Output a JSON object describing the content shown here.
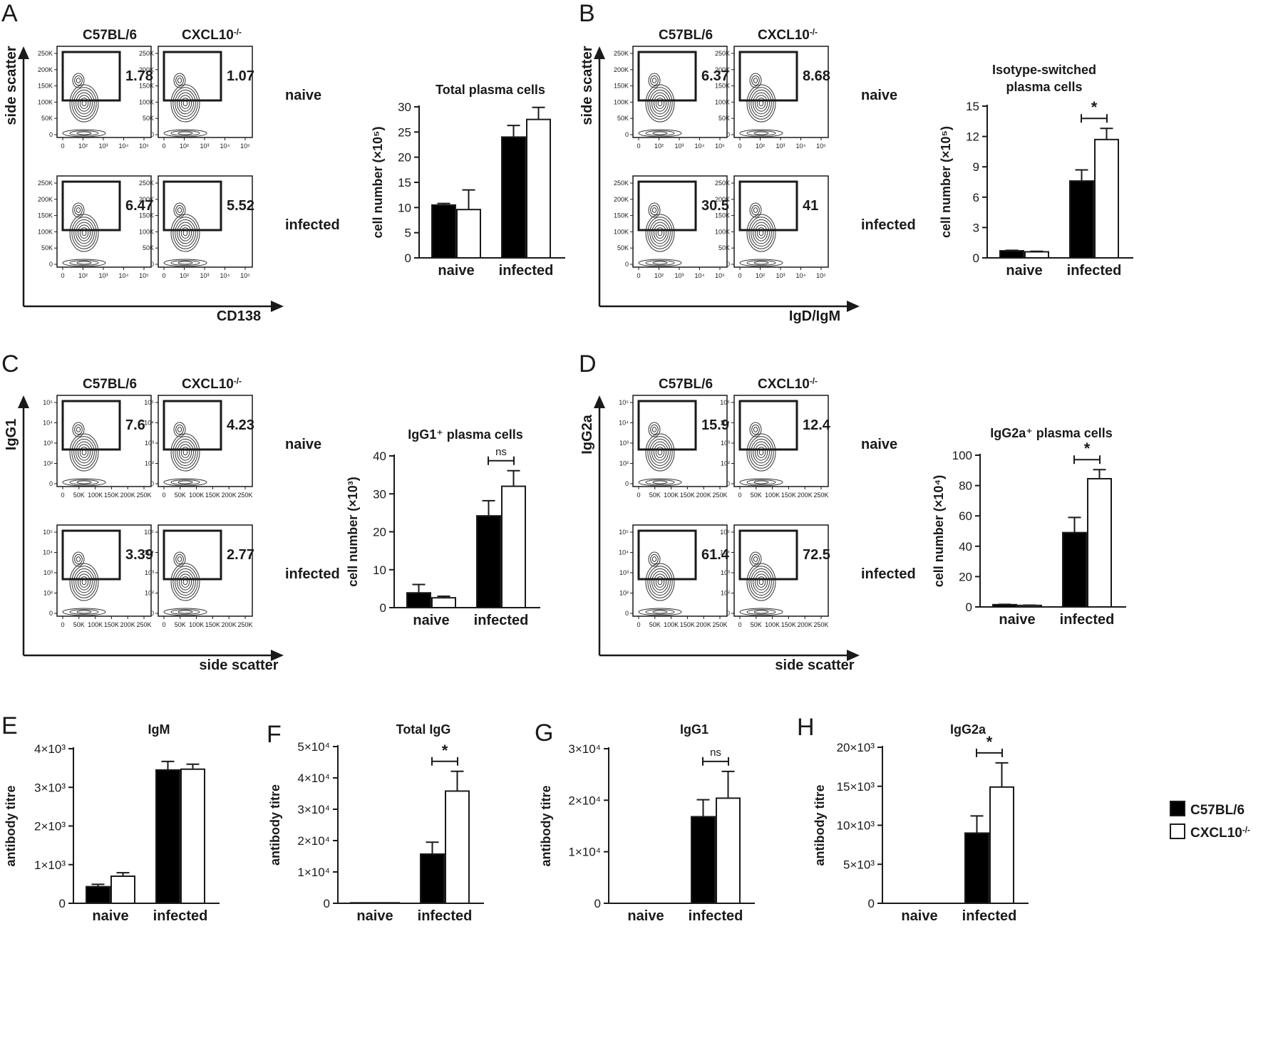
{
  "colors": {
    "wt": "#000000",
    "ko": "#ffffff",
    "ink": "#1a1a1a"
  },
  "legend": {
    "wt": "C57BL/6",
    "ko": "CXCL10-/-"
  },
  "flow_panels": [
    {
      "letter": "A",
      "col_labels": [
        "C57BL/6",
        "CXCL10-/-"
      ],
      "row_labels": [
        "naive",
        "infected"
      ],
      "y_axis_label": "side scatter",
      "x_axis_label": "CD138",
      "y_ticks": [
        "0",
        "50K",
        "100K",
        "150K",
        "200K",
        "250K"
      ],
      "x_ticks": [
        "0",
        "10²",
        "10³",
        "10⁴",
        "10⁵"
      ],
      "gate_type": "plasma-oval",
      "gate_values": [
        "1.78",
        "1.07",
        "6.47",
        "5.52"
      ]
    },
    {
      "letter": "B",
      "col_labels": [
        "C57BL/6",
        "CXCL10-/-"
      ],
      "row_labels": [
        "naive",
        "infected"
      ],
      "y_axis_label": "side scatter",
      "x_axis_label": "IgD/IgM",
      "y_ticks": [
        "0",
        "50K",
        "100K",
        "150K",
        "200K",
        "250K"
      ],
      "x_ticks": [
        "0",
        "10²",
        "10³",
        "10⁴",
        "10⁵"
      ],
      "gate_type": "left-rect",
      "gate_values": [
        "6.37",
        "8.68",
        "30.5",
        "41"
      ]
    },
    {
      "letter": "C",
      "col_labels": [
        "C57BL/6",
        "CXCL10-/-"
      ],
      "row_labels": [
        "naive",
        "infected"
      ],
      "y_axis_label": "IgG1",
      "x_axis_label": "side scatter",
      "y_ticks": [
        "0",
        "10²",
        "10³",
        "10⁴",
        "10⁵"
      ],
      "x_ticks": [
        "0",
        "50K",
        "100K",
        "150K",
        "200K",
        "250K"
      ],
      "gate_type": "top-rect",
      "gate_values": [
        "7.6",
        "4.23",
        "3.39",
        "2.77"
      ]
    },
    {
      "letter": "D",
      "col_labels": [
        "C57BL/6",
        "CXCL10-/-"
      ],
      "row_labels": [
        "naive",
        "infected"
      ],
      "y_axis_label": "IgG2a",
      "x_axis_label": "side scatter",
      "y_ticks": [
        "0",
        "10²",
        "10³",
        "10⁴",
        "10⁵"
      ],
      "x_ticks": [
        "0",
        "50K",
        "100K",
        "150K",
        "200K",
        "250K"
      ],
      "gate_type": "top-rect",
      "gate_values": [
        "15.9",
        "12.4",
        "61.4",
        "72.5"
      ]
    }
  ],
  "chart_data": [
    {
      "id": "A-bar",
      "type": "bar",
      "title": "Total plasma cells",
      "ylabel": "cell number (×10⁵)",
      "categories": [
        "naive",
        "infected"
      ],
      "ylim": [
        0,
        30
      ],
      "yticks": [
        0,
        5,
        10,
        15,
        20,
        25,
        30
      ],
      "tick_labels": [
        "0",
        "5",
        "10",
        "15",
        "20",
        "25",
        "30"
      ],
      "series": [
        {
          "name": "C57BL/6",
          "values": [
            10.5,
            24.0
          ],
          "errors": [
            0.3,
            2.3
          ]
        },
        {
          "name": "CXCL10-/-",
          "values": [
            9.6,
            27.5
          ],
          "errors": [
            3.9,
            2.4
          ]
        }
      ],
      "significance": []
    },
    {
      "id": "B-bar",
      "type": "bar",
      "title": "Isotype-switched plasma cells",
      "ylabel": "cell number (×10⁵)",
      "categories": [
        "naive",
        "infected"
      ],
      "ylim": [
        0,
        15
      ],
      "yticks": [
        0,
        3,
        6,
        9,
        12,
        15
      ],
      "tick_labels": [
        "0",
        "3",
        "6",
        "9",
        "12",
        "15"
      ],
      "series": [
        {
          "name": "C57BL/6",
          "values": [
            0.7,
            7.6
          ],
          "errors": [
            0.05,
            1.1
          ]
        },
        {
          "name": "CXCL10-/-",
          "values": [
            0.6,
            11.7
          ],
          "errors": [
            0.05,
            1.1
          ]
        }
      ],
      "significance": [
        {
          "category": 1,
          "label": "*"
        }
      ]
    },
    {
      "id": "C-bar",
      "type": "bar",
      "title": "IgG1⁺ plasma cells",
      "ylabel": "cell number (×10³)",
      "categories": [
        "naive",
        "infected"
      ],
      "ylim": [
        0,
        40
      ],
      "yticks": [
        0,
        10,
        20,
        30,
        40
      ],
      "tick_labels": [
        "0",
        "10",
        "20",
        "30",
        "40"
      ],
      "series": [
        {
          "name": "C57BL/6",
          "values": [
            3.9,
            24.2
          ],
          "errors": [
            2.2,
            4.0
          ]
        },
        {
          "name": "CXCL10-/-",
          "values": [
            2.6,
            32.0
          ],
          "errors": [
            0.4,
            4.1
          ]
        }
      ],
      "significance": [
        {
          "category": 1,
          "label": "ns"
        }
      ]
    },
    {
      "id": "D-bar",
      "type": "bar",
      "title": "IgG2a⁺ plasma cells",
      "ylabel": "cell number (×10⁴)",
      "categories": [
        "naive",
        "infected"
      ],
      "ylim": [
        0,
        100
      ],
      "yticks": [
        0,
        20,
        40,
        60,
        80,
        100
      ],
      "tick_labels": [
        "0",
        "20",
        "40",
        "60",
        "80",
        "100"
      ],
      "series": [
        {
          "name": "C57BL/6",
          "values": [
            1.5,
            49.0
          ],
          "errors": [
            0.2,
            10.0
          ]
        },
        {
          "name": "CXCL10-/-",
          "values": [
            1.0,
            84.5
          ],
          "errors": [
            0.2,
            6.0
          ]
        }
      ],
      "significance": [
        {
          "category": 1,
          "label": "*"
        }
      ]
    },
    {
      "id": "E",
      "type": "bar",
      "letter": "E",
      "title": "IgM",
      "ylabel": "antibody titre",
      "categories": [
        "naive",
        "infected"
      ],
      "ylim": [
        0,
        4000
      ],
      "yticks": [
        0,
        1000,
        2000,
        3000,
        4000
      ],
      "tick_labels": [
        "0",
        "1×10³",
        "2×10³",
        "3×10³",
        "4×10³"
      ],
      "series": [
        {
          "name": "C57BL/6",
          "values": [
            430,
            3450
          ],
          "errors": [
            60,
            220
          ]
        },
        {
          "name": "CXCL10-/-",
          "values": [
            700,
            3470
          ],
          "errors": [
            90,
            130
          ]
        }
      ],
      "significance": []
    },
    {
      "id": "F",
      "type": "bar",
      "letter": "F",
      "title": "Total IgG",
      "ylabel": "antibody titre",
      "categories": [
        "naive",
        "infected"
      ],
      "ylim": [
        0,
        50000
      ],
      "yticks": [
        0,
        10000,
        20000,
        30000,
        40000,
        50000
      ],
      "tick_labels": [
        "0",
        "1×10⁴",
        "2×10⁴",
        "3×10⁴",
        "4×10⁴",
        "5×10⁴"
      ],
      "series": [
        {
          "name": "C57BL/6",
          "values": [
            150,
            15700
          ],
          "errors": [
            0,
            3800
          ]
        },
        {
          "name": "CXCL10-/-",
          "values": [
            150,
            35800
          ],
          "errors": [
            0,
            6300
          ]
        }
      ],
      "significance": [
        {
          "category": 1,
          "label": "*"
        }
      ]
    },
    {
      "id": "G",
      "type": "bar",
      "letter": "G",
      "title": "IgG1",
      "ylabel": "antibody titre",
      "categories": [
        "naive",
        "infected"
      ],
      "ylim": [
        0,
        30000
      ],
      "yticks": [
        0,
        10000,
        20000,
        30000
      ],
      "tick_labels": [
        "0",
        "1×10⁴",
        "2×10⁴",
        "3×10⁴"
      ],
      "series": [
        {
          "name": "C57BL/6",
          "values": [
            0,
            16800
          ],
          "errors": [
            0,
            3300
          ]
        },
        {
          "name": "CXCL10-/-",
          "values": [
            0,
            20400
          ],
          "errors": [
            0,
            5200
          ]
        }
      ],
      "significance": [
        {
          "category": 1,
          "label": "ns"
        }
      ]
    },
    {
      "id": "H",
      "type": "bar",
      "letter": "H",
      "title": "IgG2a",
      "ylabel": "antibody titre",
      "categories": [
        "naive",
        "infected"
      ],
      "ylim": [
        0,
        20000
      ],
      "yticks": [
        0,
        5000,
        10000,
        15000,
        20000
      ],
      "tick_labels": [
        "0",
        "5×10³",
        "10×10³",
        "15×10³",
        "20×10³"
      ],
      "series": [
        {
          "name": "C57BL/6",
          "values": [
            0,
            9000
          ],
          "errors": [
            0,
            2200
          ]
        },
        {
          "name": "CXCL10-/-",
          "values": [
            0,
            14900
          ],
          "errors": [
            0,
            3100
          ]
        }
      ],
      "significance": [
        {
          "category": 1,
          "label": "*"
        }
      ]
    }
  ]
}
